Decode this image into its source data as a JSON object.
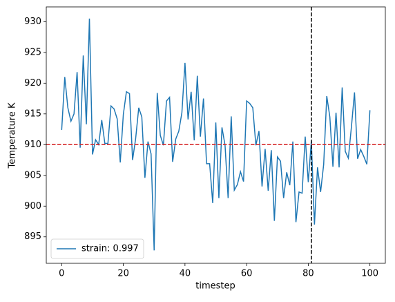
{
  "chart_data": {
    "type": "line",
    "xlabel": "timestep",
    "ylabel": "Temperature K",
    "x": [
      0,
      1,
      2,
      3,
      4,
      5,
      6,
      7,
      8,
      9,
      10,
      11,
      12,
      13,
      14,
      15,
      16,
      17,
      18,
      19,
      20,
      21,
      22,
      23,
      24,
      25,
      26,
      27,
      28,
      29,
      30,
      31,
      32,
      33,
      34,
      35,
      36,
      37,
      38,
      39,
      40,
      41,
      42,
      43,
      44,
      45,
      46,
      47,
      48,
      49,
      50,
      51,
      52,
      53,
      54,
      55,
      56,
      57,
      58,
      59,
      60,
      61,
      62,
      63,
      64,
      65,
      66,
      67,
      68,
      69,
      70,
      71,
      72,
      73,
      74,
      75,
      76,
      77,
      78,
      79,
      80,
      81,
      82,
      83,
      84,
      85,
      86,
      87,
      88,
      89,
      90,
      91,
      92,
      93,
      94,
      95,
      96,
      97,
      98,
      99,
      100
    ],
    "series": [
      {
        "name": "strain: 0.997",
        "color": "#1f77b4",
        "values": [
          912.4,
          921,
          916,
          913.8,
          915,
          921.8,
          909.5,
          924.5,
          913.3,
          930.5,
          908.4,
          910.8,
          910,
          914,
          910.2,
          910.2,
          916.3,
          915.8,
          914.2,
          907.1,
          914.9,
          918.6,
          918.3,
          907.5,
          911,
          916,
          914.5,
          904.6,
          910.5,
          908.5,
          892.8,
          918.4,
          911.5,
          909.9,
          917.1,
          917.7,
          907.2,
          910.9,
          912.2,
          915.2,
          923.3,
          914.1,
          918.6,
          910.7,
          921.2,
          911.3,
          917.5,
          906.9,
          906.9,
          900.5,
          913.6,
          901.3,
          912.8,
          909.9,
          901.3,
          914.6,
          902.6,
          903.5,
          905.6,
          904,
          917.1,
          916.7,
          916,
          909.9,
          912.2,
          903.2,
          909.3,
          902.5,
          909.1,
          897.6,
          908,
          907.3,
          901.3,
          905.5,
          903.4,
          910.5,
          897.4,
          902.3,
          902.1,
          911.3,
          903.9,
          910.6,
          897,
          906.3,
          902.3,
          906.8,
          917.9,
          914.5,
          906.4,
          915.2,
          906.3,
          919.3,
          908.9,
          907.8,
          912.9,
          918.5,
          907.7,
          909.2,
          908.1,
          906.8,
          915.6
        ]
      }
    ],
    "hlines": [
      {
        "value": 910,
        "color": "#d62728"
      }
    ],
    "vlines": [
      {
        "value": 81,
        "color": "#000000"
      }
    ],
    "xlim": [
      -5,
      105
    ],
    "ylim": [
      890.7,
      932.4
    ],
    "xticks": [
      0,
      20,
      40,
      60,
      80,
      100
    ],
    "yticks": [
      895,
      900,
      905,
      910,
      915,
      920,
      925,
      930
    ],
    "legend": "lower left"
  }
}
